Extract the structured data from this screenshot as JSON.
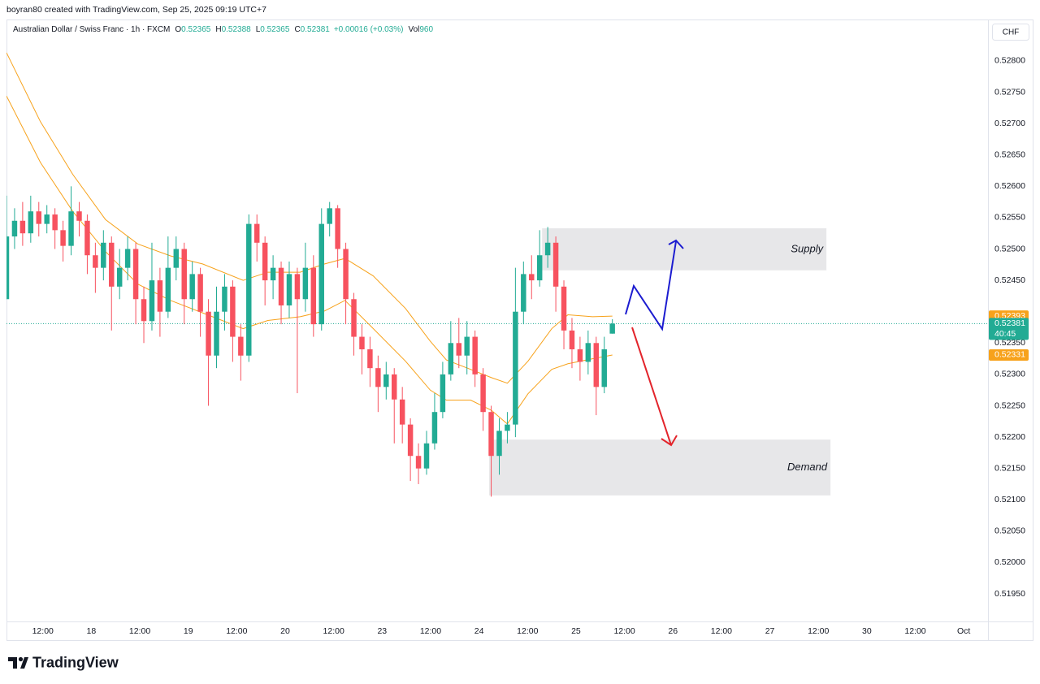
{
  "chart_data": {
    "type": "candlestick",
    "header": "boyran80 created with TradingView.com, Sep 25, 2025 09:19 UTC+7",
    "title": "Australian Dollar / Swiss Franc · 1h · FXCM",
    "legend": {
      "open_label": "O",
      "open": 0.52365,
      "high_label": "H",
      "high": 0.52388,
      "low_label": "L",
      "low": 0.52365,
      "close_label": "C",
      "close": 0.52381,
      "change": "+0.00016 (+0.03%)",
      "volume_label": "Vol",
      "volume": 960
    },
    "currency": "CHF",
    "logo": "TradingView",
    "up_color": "#22ab94",
    "down_color": "#f7525f",
    "x": [
      3,
      5,
      7,
      9,
      11,
      13,
      15,
      17,
      19,
      21,
      23,
      25,
      27,
      29,
      31,
      33,
      35,
      37,
      39,
      41,
      43,
      45,
      47,
      49,
      51,
      53,
      55,
      57,
      59,
      61,
      63,
      65,
      67,
      69,
      71,
      73,
      75,
      77,
      79,
      81,
      83,
      85,
      87,
      89,
      91,
      93,
      95,
      97,
      99,
      101,
      103,
      105,
      107,
      109,
      111,
      113,
      115,
      117,
      119,
      121,
      123,
      125,
      127,
      129,
      131,
      133,
      135,
      137,
      139,
      141,
      143,
      145,
      147,
      149,
      151,
      153
    ],
    "open": [
      0.5242,
      0.5252,
      0.52545,
      0.52525,
      0.5256,
      0.5254,
      0.52555,
      0.5253,
      0.52505,
      0.5256,
      0.52545,
      0.5249,
      0.5247,
      0.5251,
      0.5244,
      0.5247,
      0.525,
      0.5242,
      0.52385,
      0.5245,
      0.524,
      0.5247,
      0.525,
      0.5242,
      0.5246,
      0.524,
      0.5233,
      0.524,
      0.5244,
      0.5236,
      0.5233,
      0.5254,
      0.5251,
      0.5245,
      0.5247,
      0.5241,
      0.5246,
      0.5242,
      0.5247,
      0.5238,
      0.5254,
      0.52565,
      0.525,
      0.5242,
      0.5236,
      0.5234,
      0.5231,
      0.5228,
      0.523,
      0.5226,
      0.5222,
      0.5217,
      0.5215,
      0.5219,
      0.5224,
      0.523,
      0.5235,
      0.5233,
      0.5236,
      0.523,
      0.5224,
      0.5217,
      0.5221,
      0.5222,
      0.524,
      0.5246,
      0.5245,
      0.5249,
      0.5251,
      0.5244,
      0.5237,
      0.5234,
      0.5232,
      0.5235,
      0.5228,
      0.52365
    ],
    "high": [
      0.52585,
      0.52565,
      0.52575,
      0.52585,
      0.52575,
      0.5257,
      0.52565,
      0.52545,
      0.526,
      0.52575,
      0.52555,
      0.5251,
      0.5253,
      0.5252,
      0.525,
      0.5252,
      0.5251,
      0.5244,
      0.5251,
      0.5247,
      0.5252,
      0.5252,
      0.5251,
      0.5248,
      0.5247,
      0.5242,
      0.5244,
      0.5246,
      0.5245,
      0.5238,
      0.52555,
      0.52555,
      0.5252,
      0.5249,
      0.5248,
      0.5248,
      0.5247,
      0.5251,
      0.5249,
      0.52565,
      0.52575,
      0.5257,
      0.5251,
      0.5243,
      0.5238,
      0.5236,
      0.5233,
      0.5232,
      0.5231,
      0.5228,
      0.5223,
      0.5219,
      0.5221,
      0.5227,
      0.5232,
      0.52385,
      0.5239,
      0.52385,
      0.5237,
      0.5231,
      0.5225,
      0.5223,
      0.5224,
      0.5247,
      0.5248,
      0.5249,
      0.5253,
      0.52535,
      0.5252,
      0.5245,
      0.5239,
      0.5236,
      0.5237,
      0.5236,
      0.5236,
      0.52388
    ],
    "low": [
      0.5242,
      0.525,
      0.52505,
      0.5251,
      0.5252,
      0.52525,
      0.525,
      0.5248,
      0.5249,
      0.5252,
      0.5246,
      0.5243,
      0.5245,
      0.5237,
      0.5242,
      0.5245,
      0.5238,
      0.5235,
      0.5237,
      0.5236,
      0.5239,
      0.5245,
      0.5238,
      0.524,
      0.5236,
      0.5225,
      0.5231,
      0.5237,
      0.5232,
      0.5229,
      0.5232,
      0.5248,
      0.5241,
      0.5242,
      0.5238,
      0.5239,
      0.5227,
      0.524,
      0.5236,
      0.5237,
      0.5252,
      0.5247,
      0.5238,
      0.5233,
      0.523,
      0.5228,
      0.5224,
      0.5226,
      0.5219,
      0.5219,
      0.5213,
      0.52125,
      0.5214,
      0.5218,
      0.5223,
      0.5229,
      0.5231,
      0.523,
      0.5228,
      0.5221,
      0.52105,
      0.5214,
      0.5219,
      0.522,
      0.5238,
      0.5242,
      0.5244,
      0.5247,
      0.524,
      0.5234,
      0.5231,
      0.5229,
      0.523,
      0.52235,
      0.5227,
      0.52365
    ],
    "close": [
      0.5252,
      0.52545,
      0.52525,
      0.5256,
      0.5254,
      0.52555,
      0.5253,
      0.52505,
      0.5256,
      0.52545,
      0.5249,
      0.5247,
      0.5251,
      0.5244,
      0.5247,
      0.525,
      0.5242,
      0.52385,
      0.5245,
      0.524,
      0.5247,
      0.525,
      0.5242,
      0.5246,
      0.524,
      0.5233,
      0.524,
      0.5244,
      0.5236,
      0.5233,
      0.5254,
      0.5251,
      0.5245,
      0.5247,
      0.5241,
      0.5246,
      0.5242,
      0.5247,
      0.5238,
      0.5254,
      0.52565,
      0.525,
      0.5242,
      0.5236,
      0.5234,
      0.5231,
      0.5228,
      0.523,
      0.5226,
      0.5222,
      0.5217,
      0.5215,
      0.5219,
      0.5224,
      0.523,
      0.5235,
      0.5233,
      0.5236,
      0.523,
      0.5224,
      0.5217,
      0.5221,
      0.5222,
      0.524,
      0.5246,
      0.5245,
      0.5249,
      0.5251,
      0.5244,
      0.5237,
      0.5234,
      0.5232,
      0.5235,
      0.5228,
      0.5234,
      0.52381
    ],
    "moving_averages": {
      "x": [
        3,
        11.4,
        19.4,
        27.5,
        35.5,
        43.6,
        51.6,
        61.6,
        67.7,
        75.7,
        81.7,
        86.8,
        93.8,
        101.8,
        107.9,
        111.9,
        117.9,
        123,
        127,
        132.1,
        138,
        142,
        148.1,
        153
      ],
      "series": [
        {
          "color": "#f7a21b",
          "values": [
            0.52813,
            0.52703,
            0.52619,
            0.52547,
            0.52508,
            0.52489,
            0.52476,
            0.5245,
            0.52463,
            0.52463,
            0.52476,
            0.52485,
            0.52457,
            0.52405,
            0.52353,
            0.52323,
            0.52308,
            0.52295,
            0.52286,
            0.52321,
            0.52373,
            0.52395,
            0.52392,
            0.52393
          ]
        },
        {
          "color": "#f7a21b",
          "values": [
            0.52744,
            0.52638,
            0.5256,
            0.52496,
            0.52444,
            0.52418,
            0.52398,
            0.52373,
            0.52386,
            0.52392,
            0.52401,
            0.52418,
            0.52373,
            0.52321,
            0.52275,
            0.52259,
            0.52259,
            0.52243,
            0.52221,
            0.52269,
            0.52308,
            0.52317,
            0.52325,
            0.52331
          ]
        }
      ]
    },
    "zones": [
      {
        "label": "Supply",
        "x": [
          135.6,
          206
        ],
        "y": [
          0.52466,
          0.52533
        ]
      },
      {
        "label": "Demand",
        "x": [
          122.5,
          207
        ],
        "y": [
          0.52107,
          0.52196
        ]
      }
    ],
    "price_tags": [
      {
        "value": 0.52393,
        "color": "#f7a21b"
      },
      {
        "value": 0.52381,
        "color": "#22ab94",
        "countdown": "40:45"
      },
      {
        "value": 0.52331,
        "color": "#f7a21b"
      }
    ],
    "xlim": [
      3,
      246
    ],
    "xticks": [
      {
        "value": 12,
        "label": "12:00"
      },
      {
        "value": 24,
        "label": "18"
      },
      {
        "value": 36,
        "label": "12:00"
      },
      {
        "value": 48,
        "label": "19"
      },
      {
        "value": 60,
        "label": "12:00"
      },
      {
        "value": 72,
        "label": "20"
      },
      {
        "value": 84,
        "label": "12:00"
      },
      {
        "value": 96,
        "label": "23"
      },
      {
        "value": 108,
        "label": "12:00"
      },
      {
        "value": 120,
        "label": "24"
      },
      {
        "value": 132,
        "label": "12:00"
      },
      {
        "value": 144,
        "label": "25"
      },
      {
        "value": 156,
        "label": "12:00"
      },
      {
        "value": 168,
        "label": "26"
      },
      {
        "value": 180,
        "label": "12:00"
      },
      {
        "value": 192,
        "label": "27"
      },
      {
        "value": 204,
        "label": "12:00"
      },
      {
        "value": 216,
        "label": "30"
      },
      {
        "value": 228,
        "label": "12:00"
      },
      {
        "value": 240,
        "label": "Oct"
      }
    ],
    "ylim": [
      0.51906,
      0.52866
    ],
    "yticks": [
      {
        "value": 0.528,
        "label": "0.52800"
      },
      {
        "value": 0.5275,
        "label": "0.52750"
      },
      {
        "value": 0.527,
        "label": "0.52700"
      },
      {
        "value": 0.5265,
        "label": "0.52650"
      },
      {
        "value": 0.526,
        "label": "0.52600"
      },
      {
        "value": 0.5255,
        "label": "0.52550"
      },
      {
        "value": 0.525,
        "label": "0.52500"
      },
      {
        "value": 0.5245,
        "label": "0.52450"
      },
      {
        "value": 0.5235,
        "label": "0.52350"
      },
      {
        "value": 0.523,
        "label": "0.52300"
      },
      {
        "value": 0.5225,
        "label": "0.52250"
      },
      {
        "value": 0.522,
        "label": "0.52200"
      },
      {
        "value": 0.5215,
        "label": "0.52150"
      },
      {
        "value": 0.521,
        "label": "0.52100"
      },
      {
        "value": 0.5205,
        "label": "0.52050"
      },
      {
        "value": 0.52,
        "label": "0.52000"
      },
      {
        "value": 0.5195,
        "label": "0.51950"
      }
    ],
    "grid": false
  }
}
